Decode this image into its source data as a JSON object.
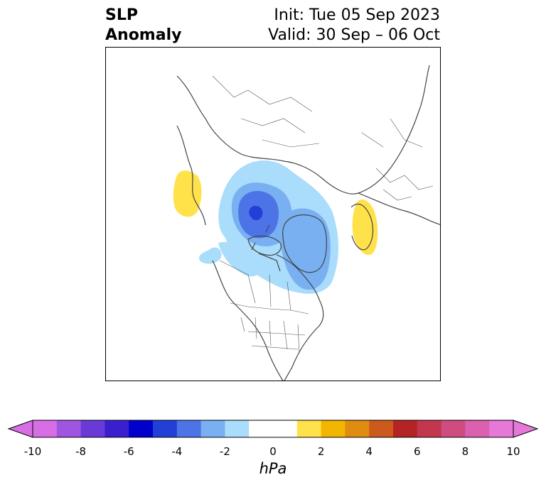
{
  "title": {
    "left_line1": "SLP",
    "left_line2": "Anomaly",
    "right_line1": "Init: Tue 05 Sep 2023",
    "right_line2": "Valid: 30 Sep – 06 Oct"
  },
  "colorbar": {
    "units": "hPa",
    "extend": "both",
    "ticks": [
      "-10",
      "-8",
      "-6",
      "-4",
      "-2",
      "0",
      "2",
      "4",
      "6",
      "8",
      "10"
    ],
    "bins": [
      {
        "from": -10,
        "to": -9,
        "color": "#d86ee6"
      },
      {
        "from": -9,
        "to": -8,
        "color": "#a055e0"
      },
      {
        "from": -8,
        "to": -7,
        "color": "#6a3ad8"
      },
      {
        "from": -7,
        "to": -6,
        "color": "#3a1fcf"
      },
      {
        "from": -6,
        "to": -5,
        "color": "#0000cc"
      },
      {
        "from": -5,
        "to": -4,
        "color": "#2240d8"
      },
      {
        "from": -4,
        "to": -3,
        "color": "#4d74e6"
      },
      {
        "from": -3,
        "to": -2,
        "color": "#79b0f2"
      },
      {
        "from": -2,
        "to": -1,
        "color": "#aadcfc"
      },
      {
        "from": -1,
        "to": 1,
        "color": "#ffffff"
      },
      {
        "from": 1,
        "to": 2,
        "color": "#ffe14a"
      },
      {
        "from": 2,
        "to": 3,
        "color": "#f2b600"
      },
      {
        "from": 3,
        "to": 4,
        "color": "#e08c10"
      },
      {
        "from": 4,
        "to": 5,
        "color": "#cc5a1a"
      },
      {
        "from": 5,
        "to": 6,
        "color": "#b52424"
      },
      {
        "from": 6,
        "to": 7,
        "color": "#c23650"
      },
      {
        "from": 7,
        "to": 8,
        "color": "#d04c80"
      },
      {
        "from": 8,
        "to": 9,
        "color": "#dc60b0"
      },
      {
        "from": 9,
        "to": 10,
        "color": "#e678d8"
      }
    ],
    "under_color": "#d86ee6",
    "over_color": "#e678d8"
  },
  "map": {
    "projection": "north-polar-stereographic",
    "anomaly_features": [
      {
        "name": "negative-anomaly-arctic-low",
        "min_hpa": -6,
        "location": "Beaufort Sea / Canadian Arctic"
      },
      {
        "name": "negative-anomaly-greenland",
        "min_hpa": -4,
        "location": "Greenland"
      },
      {
        "name": "positive-anomaly-europe",
        "max_hpa": 2,
        "location": "Scandinavia / Norwegian Sea"
      },
      {
        "name": "positive-anomaly-siberia",
        "max_hpa": 2,
        "location": "East Siberia / Bering"
      }
    ]
  }
}
